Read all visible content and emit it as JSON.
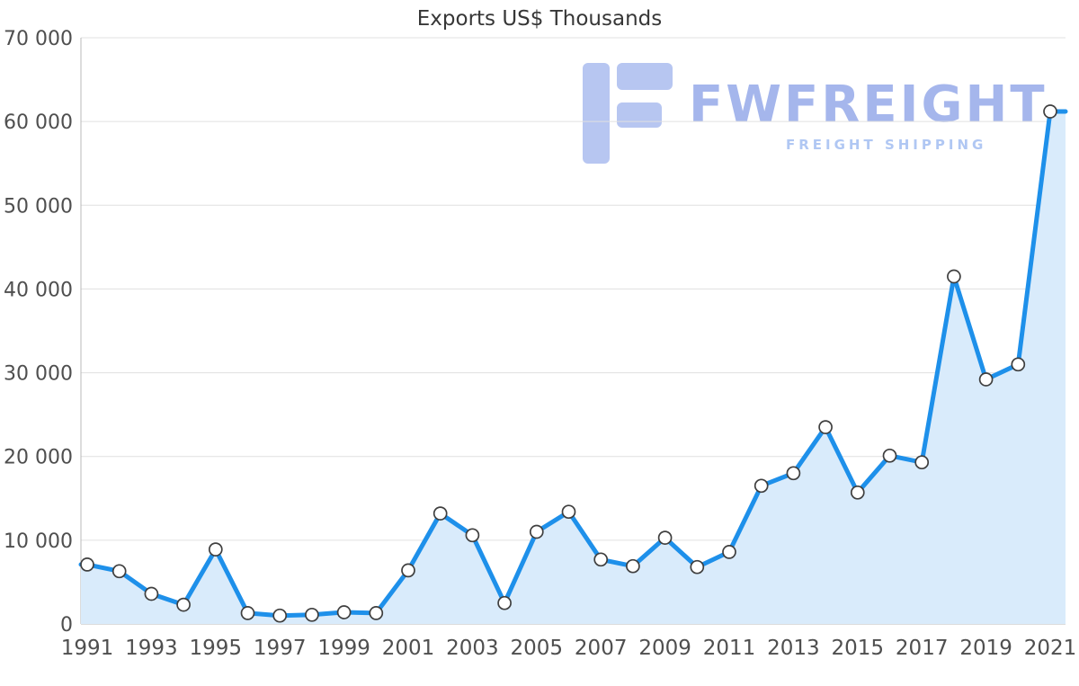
{
  "watermark": {
    "brand": "FWFREIGHT",
    "tagline": "FREIGHT SHIPPING"
  },
  "chart_data": {
    "type": "area",
    "title": "Exports US$ Thousands",
    "x": [
      1991,
      1992,
      1993,
      1994,
      1995,
      1996,
      1997,
      1998,
      1999,
      2000,
      2001,
      2002,
      2003,
      2004,
      2005,
      2006,
      2007,
      2008,
      2009,
      2010,
      2011,
      2012,
      2013,
      2014,
      2015,
      2016,
      2017,
      2018,
      2019,
      2020,
      2021
    ],
    "values": [
      7100,
      6300,
      3600,
      2300,
      8900,
      1300,
      1000,
      1100,
      1400,
      1300,
      6400,
      13200,
      10600,
      2500,
      11000,
      13400,
      7700,
      6900,
      10300,
      6800,
      8600,
      16500,
      18000,
      23500,
      15700,
      20100,
      19300,
      41500,
      29200,
      31000,
      61200
    ],
    "ylabel": "",
    "xlabel": "",
    "ylim": [
      0,
      70000
    ],
    "ytick_step": 10000,
    "ytick_labels": [
      "0",
      "10 000",
      "20 000",
      "30 000",
      "40 000",
      "50 000",
      "60 000",
      "70 000"
    ],
    "xtick_labels": [
      "1991",
      "1993",
      "1995",
      "1997",
      "1999",
      "2001",
      "2003",
      "2005",
      "2007",
      "2009",
      "2011",
      "2013",
      "2015",
      "2017",
      "2019",
      "2021"
    ],
    "grid": true,
    "legend": "none",
    "marker": "circle",
    "colors": {
      "line": "#1e90ea",
      "area": "#d9ebfb",
      "marker_fill": "#ffffff",
      "marker_stroke": "#3f3f3f",
      "grid": "#e0e0e0",
      "axis": "#b8b8b8",
      "tick_text": "#4f4f4f",
      "title_text": "#373737",
      "watermark_logo": "#b7c6f1",
      "watermark_brand": "#a5b6ec",
      "watermark_tagline": "#b0c7f3"
    }
  }
}
